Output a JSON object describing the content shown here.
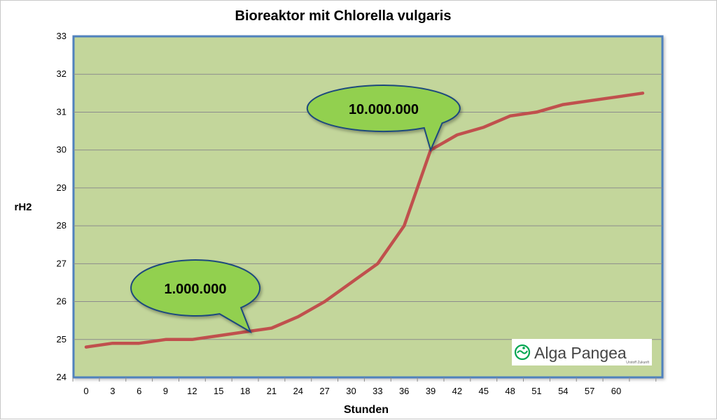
{
  "chart_data": {
    "type": "line",
    "title": "Bioreaktor mit Chlorella vulgaris",
    "xlabel": "Stunden",
    "ylabel": "rH2",
    "x_tick_labels": [
      "0",
      "3",
      "6",
      "9",
      "12",
      "15",
      "18",
      "21",
      "24",
      "27",
      "30",
      "33",
      "36",
      "39",
      "42",
      "45",
      "48",
      "51",
      "54",
      "57",
      "60"
    ],
    "y_tick_labels": [
      "24",
      "25",
      "26",
      "27",
      "28",
      "29",
      "30",
      "31",
      "32",
      "33"
    ],
    "ylim": [
      24,
      33
    ],
    "grid": true,
    "legend": "none",
    "series": [
      {
        "values": [
          24.8,
          24.9,
          24.9,
          25.0,
          25.0,
          25.1,
          25.2,
          25.3,
          25.6,
          26.0,
          26.5,
          27.0,
          28.0,
          30.0,
          30.4,
          30.6,
          30.9,
          31.0,
          31.2,
          31.3,
          31.4,
          31.5
        ]
      }
    ],
    "annotations": [
      {
        "text": "1.000.000",
        "x_index": 6.2
      },
      {
        "text": "10.000.000",
        "x_index": 13
      }
    ],
    "colors": {
      "line": "#c0504d",
      "plot_background": "#c3d69b",
      "plot_border": "#4f81bd",
      "callout_fill": "#92d050",
      "callout_border": "#1f497d"
    }
  },
  "logo": {
    "name": "Alga Pangea",
    "tagline": "Urstoff Zukunft",
    "icon": "algae-cell-icon",
    "color": "#00a651"
  }
}
